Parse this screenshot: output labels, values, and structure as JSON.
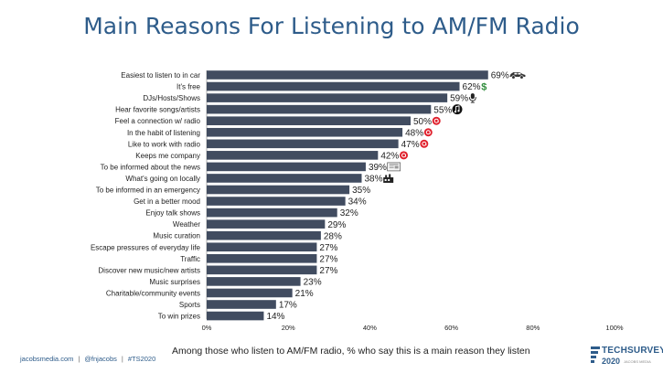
{
  "title": "Main Reasons For Listening to AM/FM Radio",
  "caption": "Among those who listen to AM/FM radio, % who say this is a main reason they listen",
  "footer": {
    "site": "jacobsmedia.com",
    "handle": "@fnjacobs",
    "hashtag": "#TS2020"
  },
  "logo": {
    "name": "TECHSURVEY",
    "year": "2020",
    "byline": "JACOBS MEDIA"
  },
  "colors": {
    "bar": "#414C60",
    "title": "#2E5C8A",
    "accent_red": "#E0202C",
    "accent_green": "#2E8B3A"
  },
  "chart_data": {
    "type": "bar",
    "orientation": "horizontal",
    "categories": [
      "Easiest to listen to in car",
      "It's free",
      "DJs/Hosts/Shows",
      "Hear favorite songs/artists",
      "Feel a connection w/ radio",
      "In the habit of listening",
      "Like to work with radio",
      "Keeps me company",
      "To be informed about the news",
      "What's going on locally",
      "To be informed in an emergency",
      "Get in a better mood",
      "Enjoy talk shows",
      "Weather",
      "Music curation",
      "Escape pressures of everyday life",
      "Traffic",
      "Discover new music/new artists",
      "Music surprises",
      "Charitable/community events",
      "Sports",
      "To win prizes"
    ],
    "values": [
      69,
      62,
      59,
      55,
      50,
      48,
      47,
      42,
      39,
      38,
      35,
      34,
      32,
      29,
      28,
      27,
      27,
      27,
      23,
      21,
      17,
      14
    ],
    "value_suffix": "%",
    "icons": [
      "car-icon",
      "dollar-icon",
      "microphone-icon",
      "music-note-icon",
      "heart-icon",
      "heart-icon",
      "heart-icon",
      "heart-icon",
      "newspaper-icon",
      "radio-tower-icon",
      "",
      "",
      "",
      "",
      "",
      "",
      "",
      "",
      "",
      "",
      "",
      ""
    ],
    "xlim": [
      0,
      100
    ],
    "xticks": [
      0,
      20,
      40,
      60,
      80,
      100
    ],
    "xtick_labels": [
      "0%",
      "20%",
      "40%",
      "60%",
      "80%",
      "100%"
    ],
    "grid": false,
    "legend": "none"
  }
}
